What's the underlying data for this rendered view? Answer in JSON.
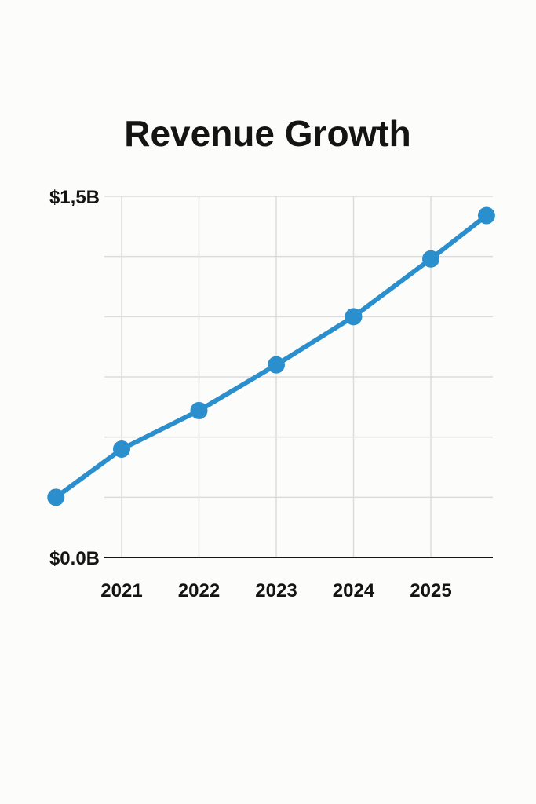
{
  "chart_data": {
    "type": "line",
    "title": "Revenue Growth",
    "xlabel": "",
    "ylabel": "",
    "x_tick_labels": [
      "2021",
      "2022",
      "2023",
      "2024",
      "2025"
    ],
    "x_ticks": [
      2021,
      2022,
      2023,
      2024,
      2025
    ],
    "y_tick_labels": [
      "$0.0B",
      "$1,5B"
    ],
    "y_ticks": [
      0,
      1.5
    ],
    "xlim": [
      2020.15,
      2025.8
    ],
    "ylim": [
      0,
      1.5
    ],
    "grid": true,
    "series": [
      {
        "color": "#2a8fcc",
        "x": [
          2020.15,
          2021,
          2022,
          2023,
          2024,
          2025,
          2025.72
        ],
        "y": [
          0.25,
          0.45,
          0.61,
          0.8,
          1.0,
          1.24,
          1.42
        ]
      }
    ]
  }
}
